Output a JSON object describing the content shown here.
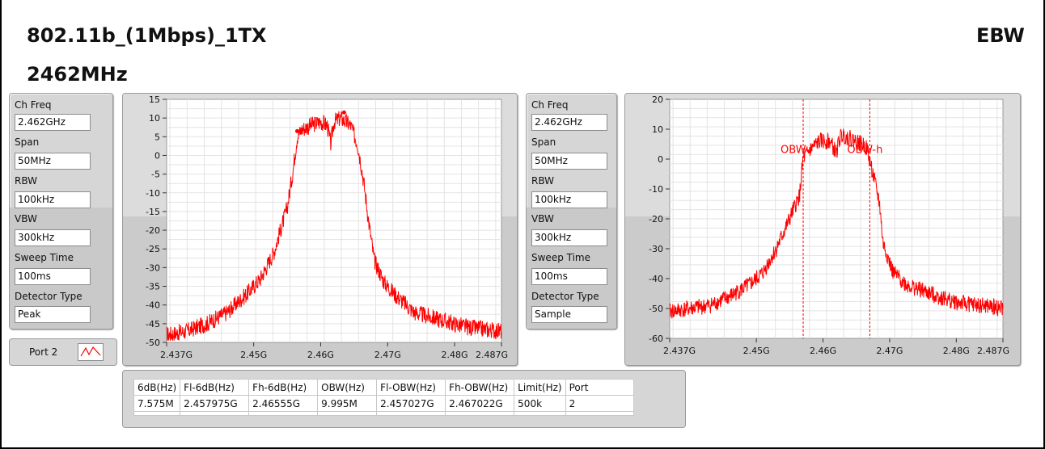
{
  "header": {
    "mode": "802.11b_(1Mbps)_1TX",
    "test_item": "EBW",
    "frequency": "2462MHz"
  },
  "left_params": [
    {
      "label": "Ch Freq",
      "value": "2.462GHz"
    },
    {
      "label": "Span",
      "value": "50MHz"
    },
    {
      "label": "RBW",
      "value": "100kHz"
    },
    {
      "label": "VBW",
      "value": "300kHz"
    },
    {
      "label": "Sweep Time",
      "value": "100ms"
    },
    {
      "label": "Detector Type",
      "value": "Peak"
    }
  ],
  "right_params": [
    {
      "label": "Ch Freq",
      "value": "2.462GHz"
    },
    {
      "label": "Span",
      "value": "50MHz"
    },
    {
      "label": "RBW",
      "value": "100kHz"
    },
    {
      "label": "VBW",
      "value": "300kHz"
    },
    {
      "label": "Sweep Time",
      "value": "100ms"
    },
    {
      "label": "Detector Type",
      "value": "Sample"
    }
  ],
  "legend": {
    "label": "Port 2"
  },
  "colors": {
    "trace": "#ff0000",
    "grid": "#e3e3e3",
    "panel": "#d6d6d6"
  },
  "results_table": {
    "headers": [
      "6dB(Hz)",
      "Fl-6dB(Hz)",
      "Fh-6dB(Hz)",
      "OBW(Hz)",
      "Fl-OBW(Hz)",
      "Fh-OBW(Hz)",
      "Limit(Hz)",
      "Port"
    ],
    "row": [
      "7.575M",
      "2.457975G",
      "2.46555G",
      "9.995M",
      "2.457027G",
      "2.467022G",
      "500k",
      "2"
    ]
  },
  "chart_data": [
    {
      "type": "line",
      "x_tick_labels": [
        "2.437G",
        "2.45G",
        "2.46G",
        "2.47G",
        "2.48G",
        "2.487G"
      ],
      "x_ticks": [
        2.437,
        2.45,
        2.46,
        2.47,
        2.48,
        2.487
      ],
      "xlim": [
        2.437,
        2.487
      ],
      "ylim": [
        -50,
        15
      ],
      "y_ticks": [
        15,
        10,
        5,
        0,
        -5,
        -10,
        -15,
        -20,
        -25,
        -30,
        -35,
        -40,
        -45,
        -50
      ],
      "grid": true,
      "series": [
        {
          "x": [
            2.437,
            2.44,
            2.443,
            2.446,
            2.449,
            2.451,
            2.453,
            2.454,
            2.455,
            2.4558,
            2.4565,
            2.4572,
            2.4585,
            2.46,
            2.461,
            2.4615,
            2.462,
            2.463,
            2.4645,
            2.4655,
            2.466,
            2.4665,
            2.4672,
            2.468,
            2.4695,
            2.471,
            2.474,
            2.478,
            2.482,
            2.487
          ],
          "y": [
            -48,
            -47,
            -45,
            -42,
            -37,
            -33,
            -26,
            -20,
            -14,
            -5,
            5,
            7,
            8,
            9,
            8,
            3,
            9,
            10,
            8,
            3,
            -2,
            -8,
            -18,
            -28,
            -34,
            -37,
            -42,
            -44,
            -46,
            -47
          ]
        }
      ],
      "markers": [
        {
          "x": 2.4565,
          "y": 6.5
        },
        {
          "x": 2.4635,
          "y": 11.5
        }
      ]
    },
    {
      "type": "line",
      "x_tick_labels": [
        "2.437G",
        "2.45G",
        "2.46G",
        "2.47G",
        "2.48G",
        "2.487G"
      ],
      "x_ticks": [
        2.437,
        2.45,
        2.46,
        2.47,
        2.48,
        2.487
      ],
      "xlim": [
        2.437,
        2.487
      ],
      "ylim": [
        -60,
        20
      ],
      "y_ticks": [
        20,
        10,
        0,
        -10,
        -20,
        -30,
        -40,
        -50,
        -60
      ],
      "grid": true,
      "series": [
        {
          "x": [
            2.437,
            2.44,
            2.443,
            2.446,
            2.449,
            2.451,
            2.453,
            2.455,
            2.4565,
            2.457,
            2.458,
            2.4595,
            2.461,
            2.462,
            2.4625,
            2.463,
            2.465,
            2.4665,
            2.4675,
            2.4685,
            2.469,
            2.4705,
            2.4725,
            2.476,
            2.48,
            2.487
          ],
          "y": [
            -51,
            -50,
            -49,
            -46,
            -42,
            -38,
            -30,
            -20,
            -12,
            0,
            3,
            6,
            6,
            2,
            7,
            8,
            6,
            4,
            -5,
            -15,
            -28,
            -38,
            -42,
            -45,
            -48,
            -50
          ]
        }
      ],
      "vlines": [
        {
          "x": 2.457027,
          "label": "OBW-l"
        },
        {
          "x": 2.467022,
          "label": "OBW-h"
        }
      ]
    }
  ]
}
